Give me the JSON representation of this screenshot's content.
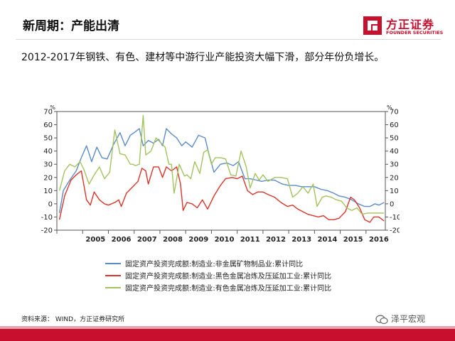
{
  "slide": {
    "title": "新周期：产能出清",
    "subtitle": "2012-2017年钢铁、有色、建材等中游行业产能投资大幅下滑，部分年份负增长。",
    "source": "资料来源： WIND，方正证券研究所"
  },
  "logo": {
    "name_cn": "方正证券",
    "name_en": "FOUNDER SECURITIES",
    "color": "#c8102e"
  },
  "watermark": {
    "text": "泽平宏观"
  },
  "colors": {
    "accent": "#c8102e",
    "series_blue": "#5b8cc9",
    "series_red": "#d9342b",
    "series_green": "#a3c35f"
  },
  "chart_data": {
    "type": "line",
    "title": "",
    "xlabel": "",
    "ylabel": "%",
    "ylabel_right": "%",
    "ylim": [
      -20,
      70
    ],
    "yticks": [
      -20,
      -10,
      0,
      10,
      20,
      30,
      40,
      50,
      60,
      70
    ],
    "xlim": [
      2004.0,
      2016.75
    ],
    "xticks": [
      "2005",
      "2006",
      "2007",
      "2008",
      "2009",
      "2010",
      "2011",
      "2012",
      "2013",
      "2014",
      "2015",
      "2016"
    ],
    "series": [
      {
        "name": "固定资产投资完成额:制造业:非金属矿物制品业:累计同比",
        "color": "#5b8cc9",
        "points": [
          [
            2004.1,
            -7
          ],
          [
            2004.25,
            10
          ],
          [
            2004.5,
            18
          ],
          [
            2004.75,
            25
          ],
          [
            2004.95,
            35
          ],
          [
            2005.15,
            44
          ],
          [
            2005.35,
            32
          ],
          [
            2005.55,
            43
          ],
          [
            2005.75,
            35
          ],
          [
            2005.95,
            34
          ],
          [
            2006.2,
            45
          ],
          [
            2006.45,
            54
          ],
          [
            2006.65,
            44
          ],
          [
            2006.85,
            52
          ],
          [
            2007.0,
            54
          ],
          [
            2007.2,
            57
          ],
          [
            2007.35,
            44
          ],
          [
            2007.55,
            48
          ],
          [
            2007.75,
            46
          ],
          [
            2007.95,
            49
          ],
          [
            2008.1,
            44
          ],
          [
            2008.25,
            57
          ],
          [
            2008.45,
            53
          ],
          [
            2008.65,
            50
          ],
          [
            2008.85,
            44
          ],
          [
            2009.0,
            47
          ],
          [
            2009.25,
            43
          ],
          [
            2009.5,
            52
          ],
          [
            2009.75,
            50
          ],
          [
            2009.9,
            38
          ],
          [
            2010.1,
            24
          ],
          [
            2010.35,
            30
          ],
          [
            2010.6,
            31
          ],
          [
            2010.85,
            29
          ],
          [
            2011.05,
            32
          ],
          [
            2011.3,
            19
          ],
          [
            2011.5,
            19
          ],
          [
            2011.75,
            18
          ],
          [
            2011.95,
            17
          ],
          [
            2012.2,
            18
          ],
          [
            2012.45,
            18
          ],
          [
            2012.75,
            15
          ],
          [
            2013.0,
            14
          ],
          [
            2013.25,
            14
          ],
          [
            2013.5,
            13
          ],
          [
            2013.75,
            13
          ],
          [
            2014.0,
            13
          ],
          [
            2014.25,
            11
          ],
          [
            2014.5,
            10
          ],
          [
            2014.75,
            8
          ],
          [
            2014.95,
            6
          ],
          [
            2015.2,
            5
          ],
          [
            2015.45,
            3
          ],
          [
            2015.7,
            0
          ],
          [
            2015.95,
            -2
          ],
          [
            2016.15,
            -2
          ],
          [
            2016.35,
            0
          ],
          [
            2016.5,
            -1
          ],
          [
            2016.7,
            1
          ]
        ]
      },
      {
        "name": "固定资产投资完成额:制造业:黑色金属冶炼及压延加工业:累计同比",
        "color": "#d9342b",
        "points": [
          [
            2004.1,
            -12
          ],
          [
            2004.3,
            6
          ],
          [
            2004.55,
            18
          ],
          [
            2004.75,
            22
          ],
          [
            2004.95,
            25
          ],
          [
            2005.15,
            3
          ],
          [
            2005.3,
            -1
          ],
          [
            2005.45,
            9
          ],
          [
            2005.65,
            3
          ],
          [
            2005.85,
            0
          ],
          [
            2006.0,
            -1
          ],
          [
            2006.25,
            1
          ],
          [
            2006.4,
            3
          ],
          [
            2006.5,
            -2
          ],
          [
            2006.7,
            8
          ],
          [
            2006.95,
            13
          ],
          [
            2007.15,
            17
          ],
          [
            2007.3,
            27
          ],
          [
            2007.45,
            25
          ],
          [
            2007.55,
            15
          ],
          [
            2007.75,
            28
          ],
          [
            2007.95,
            28
          ],
          [
            2008.1,
            20
          ],
          [
            2008.25,
            28
          ],
          [
            2008.45,
            25
          ],
          [
            2008.65,
            28
          ],
          [
            2008.8,
            15
          ],
          [
            2008.9,
            -5
          ],
          [
            2009.05,
            1
          ],
          [
            2009.25,
            0
          ],
          [
            2009.45,
            -3
          ],
          [
            2009.65,
            3
          ],
          [
            2009.85,
            -4
          ],
          [
            2010.1,
            6
          ],
          [
            2010.35,
            14
          ],
          [
            2010.55,
            19
          ],
          [
            2010.8,
            20
          ],
          [
            2011.0,
            19
          ],
          [
            2011.2,
            21
          ],
          [
            2011.4,
            10
          ],
          [
            2011.6,
            7
          ],
          [
            2011.8,
            9
          ],
          [
            2012.0,
            9
          ],
          [
            2012.2,
            7
          ],
          [
            2012.45,
            5
          ],
          [
            2012.7,
            1
          ],
          [
            2012.95,
            -2
          ],
          [
            2013.15,
            -1
          ],
          [
            2013.35,
            -4
          ],
          [
            2013.55,
            -6
          ],
          [
            2013.75,
            -8
          ],
          [
            2013.95,
            -9
          ],
          [
            2014.15,
            -10
          ],
          [
            2014.35,
            -9
          ],
          [
            2014.55,
            -12
          ],
          [
            2014.75,
            -12
          ],
          [
            2014.95,
            -11
          ],
          [
            2015.2,
            -6
          ],
          [
            2015.4,
            5
          ],
          [
            2015.55,
            3
          ],
          [
            2015.75,
            -3
          ],
          [
            2015.95,
            -12
          ],
          [
            2016.15,
            -14
          ],
          [
            2016.3,
            -10
          ],
          [
            2016.5,
            -10
          ],
          [
            2016.7,
            -13
          ]
        ]
      },
      {
        "name": "固定资产投资完成额:制造业:有色金属冶炼及压延加工业:累计同比",
        "color": "#a3c35f",
        "points": [
          [
            2004.1,
            10
          ],
          [
            2004.3,
            25
          ],
          [
            2004.5,
            30
          ],
          [
            2004.7,
            28
          ],
          [
            2004.9,
            32
          ],
          [
            2005.05,
            26
          ],
          [
            2005.25,
            15
          ],
          [
            2005.45,
            22
          ],
          [
            2005.65,
            28
          ],
          [
            2005.85,
            19
          ],
          [
            2006.05,
            24
          ],
          [
            2006.25,
            56
          ],
          [
            2006.45,
            38
          ],
          [
            2006.65,
            37
          ],
          [
            2006.85,
            30
          ],
          [
            2006.95,
            30
          ],
          [
            2007.05,
            29
          ],
          [
            2007.2,
            30
          ],
          [
            2007.35,
            67
          ],
          [
            2007.45,
            37
          ],
          [
            2007.65,
            40
          ],
          [
            2007.85,
            50
          ],
          [
            2008.0,
            47
          ],
          [
            2008.2,
            43
          ],
          [
            2008.35,
            30
          ],
          [
            2008.45,
            30
          ],
          [
            2008.55,
            8
          ],
          [
            2008.75,
            30
          ],
          [
            2008.95,
            21
          ],
          [
            2009.05,
            22
          ],
          [
            2009.2,
            19
          ],
          [
            2009.35,
            32
          ],
          [
            2009.55,
            23
          ],
          [
            2009.7,
            39
          ],
          [
            2009.85,
            41
          ],
          [
            2010.0,
            30
          ],
          [
            2010.15,
            35
          ],
          [
            2010.35,
            35
          ],
          [
            2010.55,
            34
          ],
          [
            2010.75,
            22
          ],
          [
            2010.95,
            21
          ],
          [
            2011.15,
            40
          ],
          [
            2011.35,
            28
          ],
          [
            2011.5,
            12
          ],
          [
            2011.7,
            23
          ],
          [
            2011.85,
            18
          ],
          [
            2012.0,
            22
          ],
          [
            2012.2,
            17
          ],
          [
            2012.45,
            20
          ],
          [
            2012.7,
            20
          ],
          [
            2012.95,
            19
          ],
          [
            2013.15,
            5
          ],
          [
            2013.35,
            8
          ],
          [
            2013.55,
            13
          ],
          [
            2013.75,
            8
          ],
          [
            2013.95,
            15
          ],
          [
            2014.1,
            -2
          ],
          [
            2014.3,
            5
          ],
          [
            2014.45,
            6
          ],
          [
            2014.65,
            5
          ],
          [
            2014.85,
            3
          ],
          [
            2015.05,
            2
          ],
          [
            2015.25,
            -3
          ],
          [
            2015.45,
            -5
          ],
          [
            2015.65,
            -3
          ],
          [
            2015.85,
            -8
          ],
          [
            2016.05,
            -7
          ],
          [
            2016.25,
            -7
          ],
          [
            2016.45,
            -7
          ],
          [
            2016.7,
            -7
          ]
        ]
      }
    ]
  }
}
